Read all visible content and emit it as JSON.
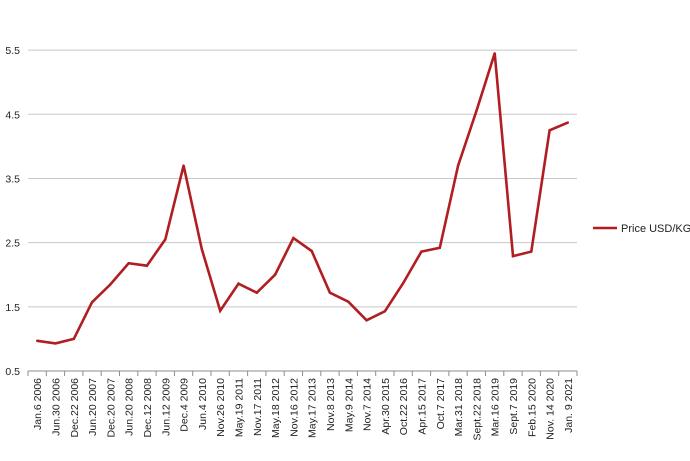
{
  "chart_data": {
    "type": "line",
    "title": "",
    "xlabel": "",
    "ylabel": "",
    "ylim": [
      0.5,
      6.0
    ],
    "yticks": [
      "0.5",
      "1.5",
      "2.5",
      "3.5",
      "4.5",
      "5.5"
    ],
    "grid": "horizontal",
    "legend_position": "right",
    "categories": [
      "Jan.6 2006",
      "Jun.30 2006",
      "Dec.22 2006",
      "Jun.20 2007",
      "Dec.20 2007",
      "Jun.20 2008",
      "Dec.12 2008",
      "Jun.12 2009",
      "Dec.4 2009",
      "Jun.4 2010",
      "Nov.26 2010",
      "May.19 2011",
      "Nov.17 2011",
      "May.18 2012",
      "Nov.16 2012",
      "May.17 2013",
      "Nov.8 2013",
      "May.9 2014",
      "Nov.7 2014",
      "Apr.30 2015",
      "Oct.22 2016",
      "Apr.15 2017",
      "Oct.7 2017",
      "Mar.31 2018",
      "Sept.22 2018",
      "Mar.16 2019",
      "Sept.7 2019",
      "Feb.15 2020",
      "Nov. 14 2020",
      "Jan. 9 2021"
    ],
    "series": [
      {
        "name": "Price USD/KG",
        "color": "#b01e22",
        "values": [
          0.97,
          0.93,
          1.0,
          1.57,
          1.85,
          2.18,
          2.14,
          2.55,
          3.7,
          2.4,
          1.44,
          1.86,
          1.72,
          2.0,
          2.57,
          2.37,
          1.72,
          1.58,
          1.29,
          1.43,
          1.87,
          2.36,
          2.42,
          3.7,
          4.55,
          5.45,
          2.29,
          2.36,
          4.25,
          4.37
        ]
      }
    ]
  }
}
